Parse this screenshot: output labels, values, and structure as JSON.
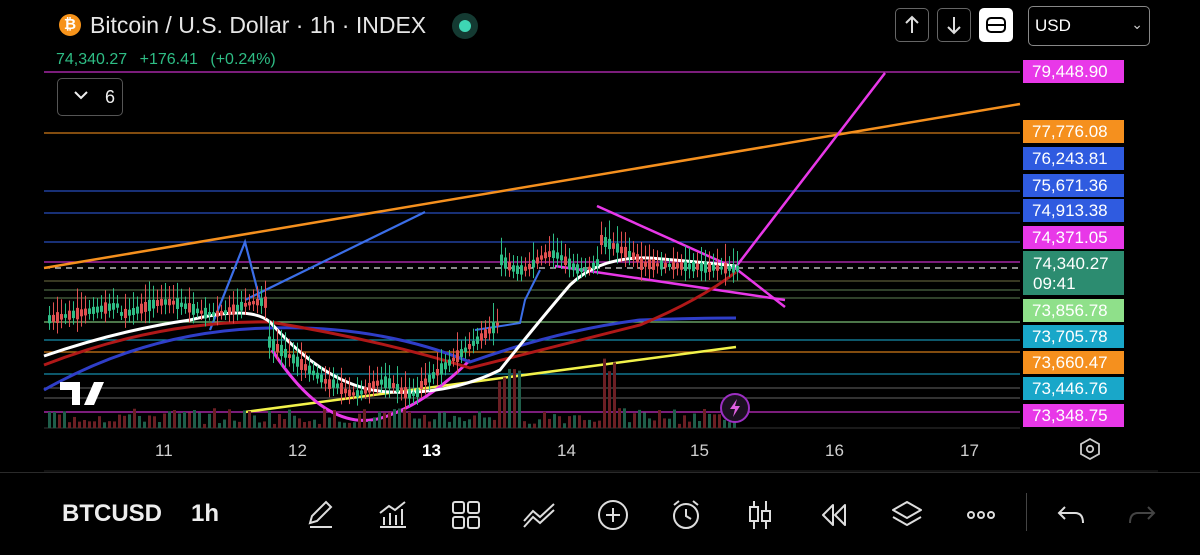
{
  "header": {
    "title": "Bitcoin / U.S. Dollar · 1h · INDEX",
    "logo_glyph": "₿",
    "last_price": "74,340.27",
    "change_abs": "+176.41",
    "change_pct": "(+0.24%)",
    "currency": "USD",
    "indicator_count": "6"
  },
  "price_tags": [
    {
      "label": "79,448.90",
      "color": "#e838e8"
    },
    {
      "label": "77,776.08",
      "color": "#f5901e"
    },
    {
      "label": "76,243.81",
      "color": "#2f5be0"
    },
    {
      "label": "75,671.36",
      "color": "#2f5be0"
    },
    {
      "label": "74,913.38",
      "color": "#2f5be0"
    },
    {
      "label": "74,371.05",
      "color": "#e838e8"
    },
    {
      "label": "73,856.78",
      "color": "#8fe08a"
    },
    {
      "label": "73,705.78",
      "color": "#19a7c9"
    },
    {
      "label": "73,660.47",
      "color": "#f5901e"
    },
    {
      "label": "73,446.76",
      "color": "#19a7c9"
    },
    {
      "label": "73,348.75",
      "color": "#e838e8"
    }
  ],
  "current_price": {
    "price": "74,340.27",
    "countdown": "09:41",
    "color": "#2c8c70"
  },
  "x_axis": [
    {
      "label": "11",
      "bold": false
    },
    {
      "label": "12",
      "bold": false
    },
    {
      "label": "13",
      "bold": true
    },
    {
      "label": "14",
      "bold": false
    },
    {
      "label": "15",
      "bold": false
    },
    {
      "label": "16",
      "bold": false
    },
    {
      "label": "17",
      "bold": false
    }
  ],
  "toolbar": {
    "symbol": "BTCUSD",
    "timeframe": "1h",
    "icons": [
      "draw-pen-icon",
      "indicators-icon",
      "layouts-grid-icon",
      "compare-icon",
      "add-icon",
      "alert-clock-icon",
      "candle-style-icon",
      "replay-icon",
      "layers-icon",
      "more-icon",
      "undo-icon",
      "redo-icon"
    ]
  },
  "colors": {
    "up": "#2ebd85",
    "down": "#e05050",
    "background": "#000000"
  }
}
